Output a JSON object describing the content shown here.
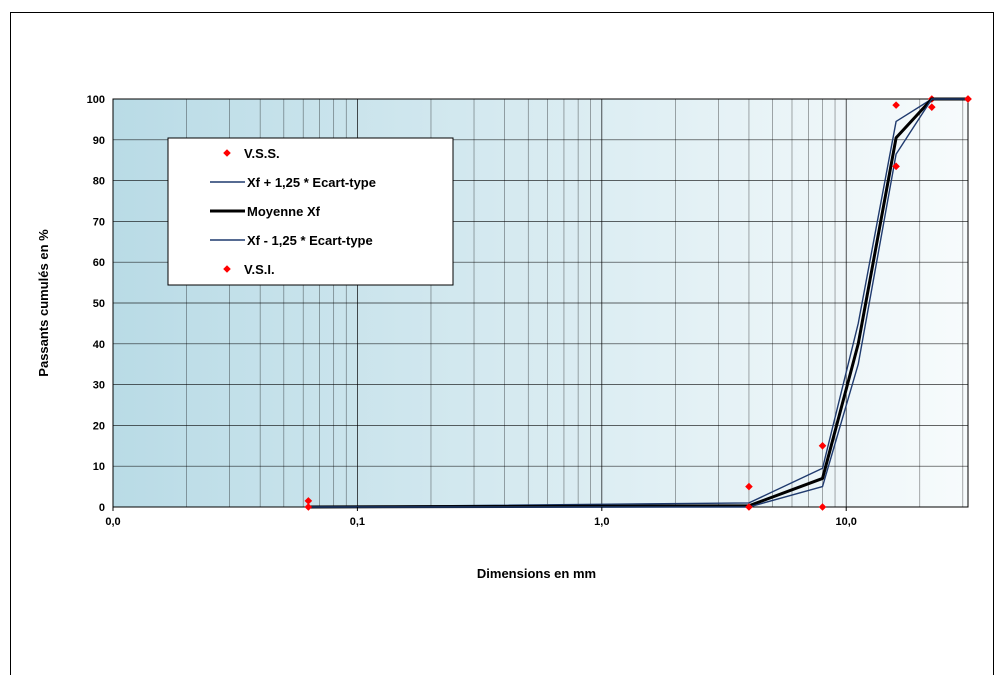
{
  "chart_data": {
    "type": "line",
    "xscale": "log",
    "xlim": [
      0.01,
      31.5
    ],
    "ylim": [
      0,
      100
    ],
    "grid": true,
    "legend_position": "upper-left",
    "xlabel": "Dimensions en mm",
    "ylabel": "Passants cumulés en %",
    "x_ticks": [
      {
        "value": 0.01,
        "label": "0,0"
      },
      {
        "value": 0.1,
        "label": "0,1"
      },
      {
        "value": 1,
        "label": "1,0"
      },
      {
        "value": 10,
        "label": "10,0"
      }
    ],
    "y_ticks": [
      0,
      10,
      20,
      30,
      40,
      50,
      60,
      70,
      80,
      90,
      100
    ],
    "series": [
      {
        "name": "V.S.S.",
        "kind": "marker",
        "color": "#ff0000",
        "points": [
          [
            0.063,
            1.5
          ],
          [
            4,
            5
          ],
          [
            8,
            15
          ],
          [
            16,
            98.5
          ],
          [
            22.4,
            100
          ],
          [
            31.5,
            100
          ]
        ]
      },
      {
        "name": "Xf + 1,25 * Ecart-type",
        "kind": "line",
        "color": "#1f3a6e",
        "points": [
          [
            0.063,
            0
          ],
          [
            4,
            1
          ],
          [
            8,
            9.5
          ],
          [
            11.2,
            45
          ],
          [
            16,
            94.5
          ],
          [
            22.4,
            100
          ],
          [
            31.5,
            100
          ]
        ]
      },
      {
        "name": "Moyenne Xf",
        "kind": "line",
        "color": "#000000",
        "points": [
          [
            0.063,
            0
          ],
          [
            4,
            0.3
          ],
          [
            8,
            7
          ],
          [
            11.2,
            40
          ],
          [
            16,
            90.5
          ],
          [
            22.4,
            100
          ],
          [
            31.5,
            100
          ]
        ]
      },
      {
        "name": "Xf - 1,25 * Ecart-type",
        "kind": "line",
        "color": "#1f3a6e",
        "points": [
          [
            0.063,
            0
          ],
          [
            4,
            0
          ],
          [
            8,
            5
          ],
          [
            11.2,
            35
          ],
          [
            16,
            86.5
          ],
          [
            22.4,
            100
          ],
          [
            31.5,
            100
          ]
        ]
      },
      {
        "name": "V.S.I.",
        "kind": "marker",
        "color": "#ff0000",
        "points": [
          [
            0.063,
            0
          ],
          [
            4,
            0
          ],
          [
            8,
            0
          ],
          [
            16,
            83.5
          ],
          [
            22.4,
            98
          ],
          [
            31.5,
            100
          ]
        ]
      }
    ]
  }
}
